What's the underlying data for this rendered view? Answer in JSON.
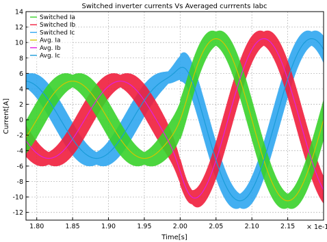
{
  "chart_data": {
    "type": "line",
    "title": "Switched inverter currents Vs Averaged currrents Iabc",
    "xlabel": "Time[s]",
    "ylabel": "Current[A]",
    "x_unit_note": "× 1e-1",
    "xlim": [
      1.785,
      2.2
    ],
    "ylim": [
      -13,
      14
    ],
    "xticks": [
      "1.80",
      "1.85",
      "1.90",
      "1.95",
      "2.00",
      "2.05",
      "2.10",
      "2.15"
    ],
    "xtick_values": [
      1.8,
      1.85,
      1.9,
      1.95,
      2.0,
      2.05,
      2.1,
      2.15
    ],
    "yticks": [
      "-12",
      "-10",
      "-8",
      "-6",
      "-4",
      "-2",
      "0",
      "2",
      "4",
      "6",
      "8",
      "10",
      "12",
      "14"
    ],
    "ytick_values": [
      -12,
      -10,
      -8,
      -6,
      -4,
      -2,
      0,
      2,
      4,
      6,
      8,
      10,
      12,
      14
    ],
    "grid": true,
    "legend_position": "top-left",
    "fundamental_period_x": 0.2,
    "step_time_x": 2.0,
    "amplitude_before_step": 5,
    "amplitude_after_step": 10.5,
    "ripple_amplitude_before": 2.3,
    "ripple_amplitude_after": 2.6,
    "series": [
      {
        "name": "Switched Ia",
        "color": "#39d12a",
        "kind": "switched",
        "phase_deg": 0
      },
      {
        "name": "Switched Ib",
        "color": "#f01e3c",
        "kind": "switched",
        "phase_deg": -120
      },
      {
        "name": "Switched Ic",
        "color": "#2fa6f0",
        "kind": "switched",
        "phase_deg": 120
      },
      {
        "name": "Avg. Ia",
        "color": "#d4c400",
        "kind": "average",
        "phase_deg": 0
      },
      {
        "name": "Avg. Ib",
        "color": "#e020e0",
        "kind": "average",
        "phase_deg": -120
      },
      {
        "name": "Avg. Ic",
        "color": "#1a9bd8",
        "kind": "average",
        "phase_deg": 120
      }
    ],
    "average_samples": [
      {
        "x": 1.8,
        "Ia": 0.0,
        "Ib": -4.3,
        "Ic": 4.3
      },
      {
        "x": 1.85,
        "Ia": 5.0,
        "Ib": -2.5,
        "Ic": -2.5
      },
      {
        "x": 1.9,
        "Ia": 0.0,
        "Ib": 4.3,
        "Ic": -4.3
      },
      {
        "x": 1.95,
        "Ia": -5.0,
        "Ib": 2.5,
        "Ic": 2.5
      },
      {
        "x": 2.0,
        "Ia": 0.0,
        "Ib": -4.3,
        "Ic": 4.3
      },
      {
        "x": 2.05,
        "Ia": 10.5,
        "Ib": -5.3,
        "Ic": -5.3
      },
      {
        "x": 2.1,
        "Ia": 0.0,
        "Ib": 9.1,
        "Ic": -9.1
      },
      {
        "x": 2.15,
        "Ia": -10.5,
        "Ib": 5.3,
        "Ic": 5.3
      }
    ]
  }
}
